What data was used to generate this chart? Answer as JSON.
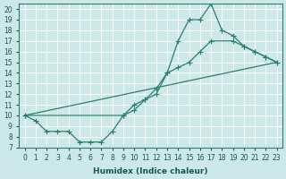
{
  "xlabel": "Humidex (Indice chaleur)",
  "background_color": "#cce8e8",
  "grid_color": "#ffffff",
  "line_color": "#2e7d6e",
  "xlim": [
    -0.5,
    23.5
  ],
  "ylim": [
    7,
    20.5
  ],
  "xticks": [
    0,
    1,
    2,
    3,
    4,
    5,
    6,
    7,
    8,
    9,
    10,
    11,
    12,
    13,
    14,
    15,
    16,
    17,
    18,
    19,
    20,
    21,
    22,
    23
  ],
  "yticks": [
    7,
    8,
    9,
    10,
    11,
    12,
    13,
    14,
    15,
    16,
    17,
    18,
    19,
    20
  ],
  "line_zigzag": {
    "x": [
      0,
      1,
      2,
      3,
      4,
      5,
      6,
      7,
      8,
      9,
      10,
      11,
      12,
      13,
      14,
      15,
      16,
      17,
      18,
      19,
      20,
      21,
      22,
      23
    ],
    "y": [
      10,
      9.5,
      8.5,
      8.5,
      8.5,
      7.5,
      7.5,
      7.5,
      8.5,
      10,
      11,
      11.5,
      12,
      14,
      17,
      19,
      19,
      20.5,
      18,
      17.5,
      16.5,
      16,
      15.5,
      15
    ]
  },
  "line_upper_diag": {
    "x": [
      0,
      23
    ],
    "y": [
      10,
      15
    ]
  },
  "line_mid_diag": {
    "x": [
      0,
      9,
      10,
      11,
      12,
      13,
      14,
      15,
      16,
      17,
      19,
      20,
      21,
      22,
      23
    ],
    "y": [
      10,
      10,
      10.5,
      11.5,
      12.5,
      14,
      14.5,
      15,
      16,
      17,
      17,
      16.5,
      16,
      15.5,
      15
    ]
  }
}
